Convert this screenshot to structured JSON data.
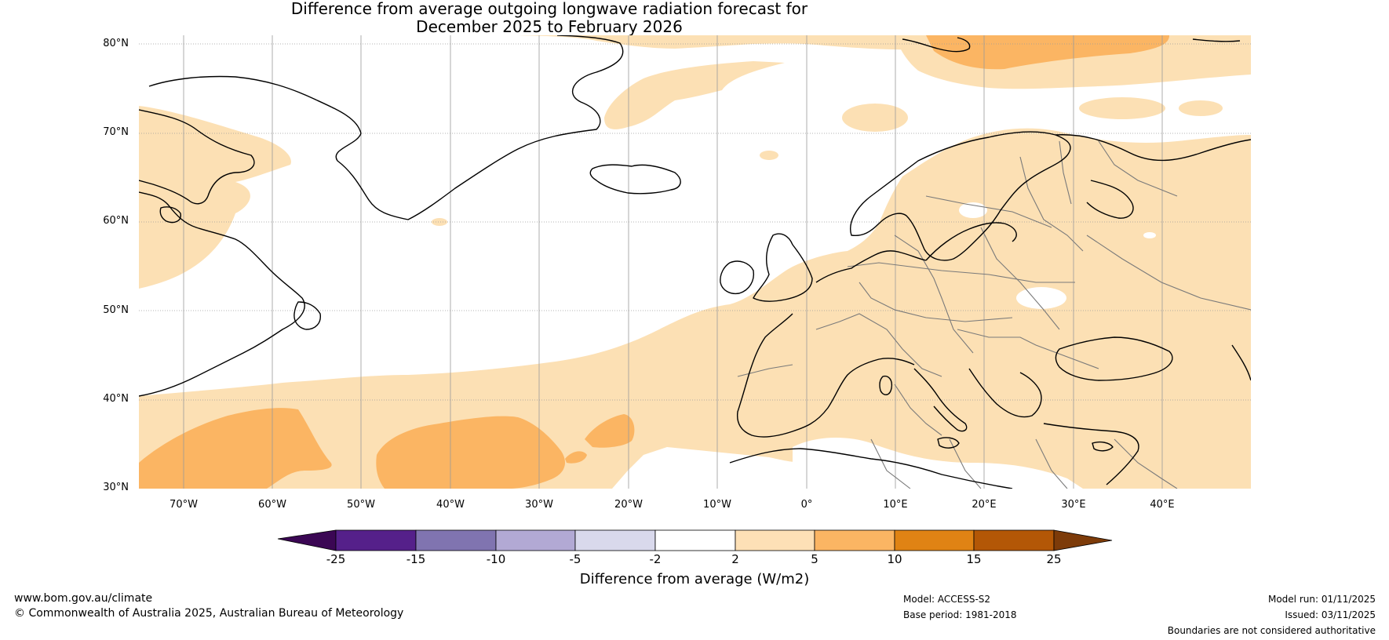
{
  "title": {
    "line1": "Difference from average outgoing longwave radiation forecast for",
    "line2": "December 2025 to February 2026"
  },
  "map": {
    "extent": {
      "lon_min": -75,
      "lon_max": 50,
      "lat_min": 30,
      "lat_max": 81
    },
    "lat_labels": [
      "30°N",
      "40°N",
      "50°N",
      "60°N",
      "70°N",
      "80°N"
    ],
    "lon_labels": [
      "70°W",
      "60°W",
      "50°W",
      "40°W",
      "30°W",
      "20°W",
      "10°W",
      "0°",
      "10°E",
      "20°E",
      "30°E",
      "40°E"
    ],
    "colors": {
      "land": "#fce0b4",
      "orange": "#fbb563",
      "coast": "#000000",
      "border": "#7a7a7a",
      "grid": "#9a9a9a"
    }
  },
  "colorbar": {
    "ticks": [
      "-25",
      "-15",
      "-10",
      "-5",
      "-2",
      "2",
      "5",
      "10",
      "15",
      "25"
    ],
    "colors": [
      "#3b0754",
      "#55208a",
      "#8074b0",
      "#b2a9d4",
      "#d9d9ec",
      "#ffffff",
      "#fde0b6",
      "#fbb563",
      "#e08314",
      "#b35706",
      "#7d3b09"
    ],
    "label": "Difference from average (W/m2)"
  },
  "footer": {
    "website": "www.bom.gov.au/climate",
    "copyright": "© Commonwealth of Australia 2025, Australian Bureau of Meteorology",
    "model": "Model: ACCESS-S2",
    "base_period": "Base period: 1981-2018",
    "model_run": "Model run: 01/11/2025",
    "issued": "Issued: 03/11/2025",
    "disclaimer": "Boundaries are not considered authoritative"
  }
}
